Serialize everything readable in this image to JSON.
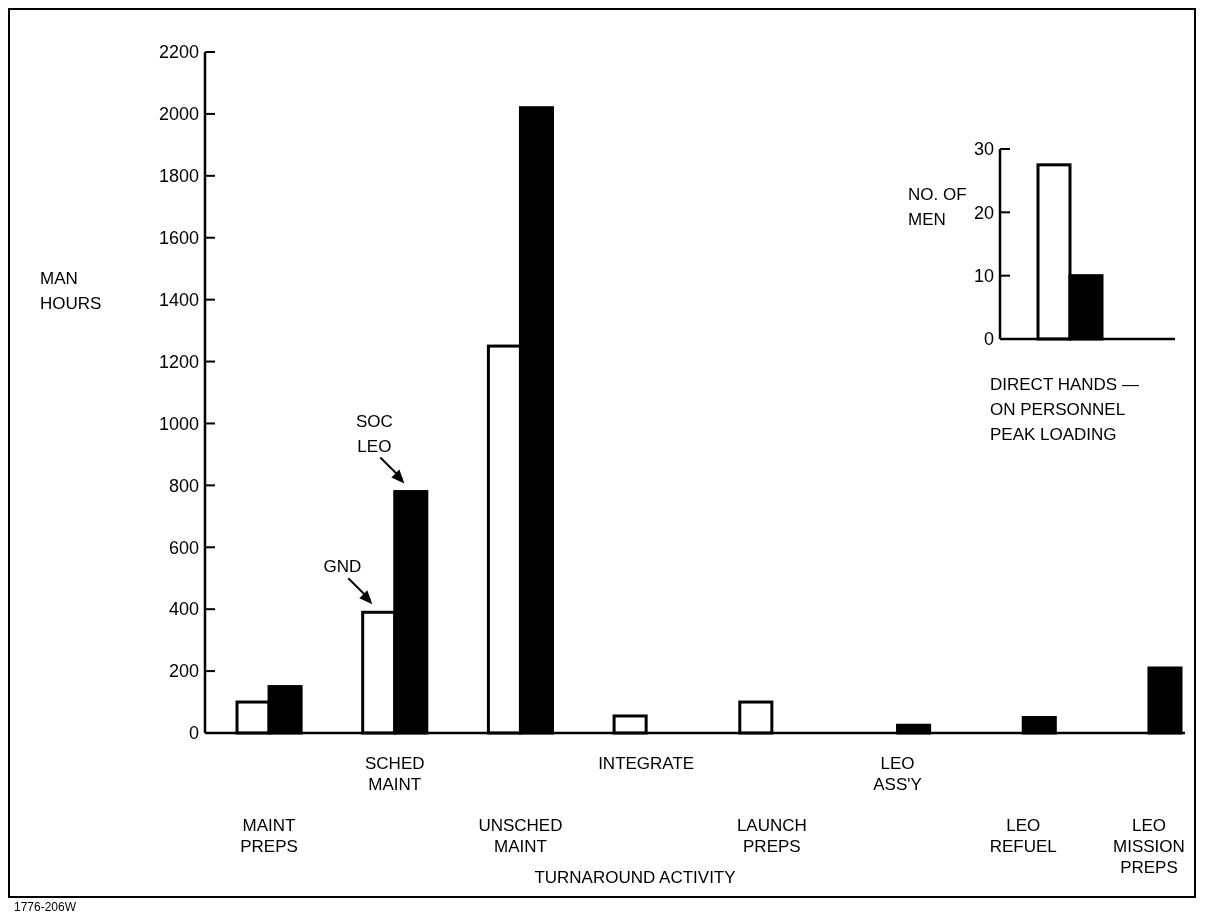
{
  "chart_data": [
    {
      "type": "bar",
      "ylabel": "MAN\nHOURS",
      "xlabel": "TURNAROUND ACTIVITY",
      "categories": [
        "MAINT\nPREPS",
        "SCHED\nMAINT",
        "UNSCHED\nMAINT",
        "INTEGRATE",
        "LAUNCH\nPREPS",
        "LEO\nASS'Y",
        "LEO\nREFUEL",
        "LEO\nMISSION\nPREPS"
      ],
      "series": [
        {
          "name": "GND",
          "color": "#ffffff",
          "values": [
            100,
            390,
            1250,
            55,
            100,
            null,
            null,
            null
          ]
        },
        {
          "name": "SOC\nLEO",
          "color": "#000000",
          "values": [
            150,
            780,
            2020,
            null,
            null,
            25,
            50,
            210
          ]
        }
      ],
      "ylim": [
        0,
        2200
      ],
      "yticks": [
        0,
        200,
        400,
        600,
        800,
        1000,
        1200,
        1400,
        1600,
        1800,
        2000,
        2200
      ],
      "grid": false,
      "annotations": [
        "1776-206W"
      ]
    },
    {
      "type": "bar",
      "ylabel": "NO. OF\nMEN",
      "xlabel": "DIRECT HANDS —\nON PERSONNEL\nPEAK LOADING",
      "categories": [
        null
      ],
      "series": [
        {
          "color": "#ffffff",
          "values": [
            27.5
          ]
        },
        {
          "color": "#000000",
          "values": [
            10
          ]
        }
      ],
      "ylim": [
        0,
        30
      ],
      "yticks": [
        0,
        10,
        20,
        30
      ],
      "grid": false,
      "tick_labels": "y"
    }
  ]
}
